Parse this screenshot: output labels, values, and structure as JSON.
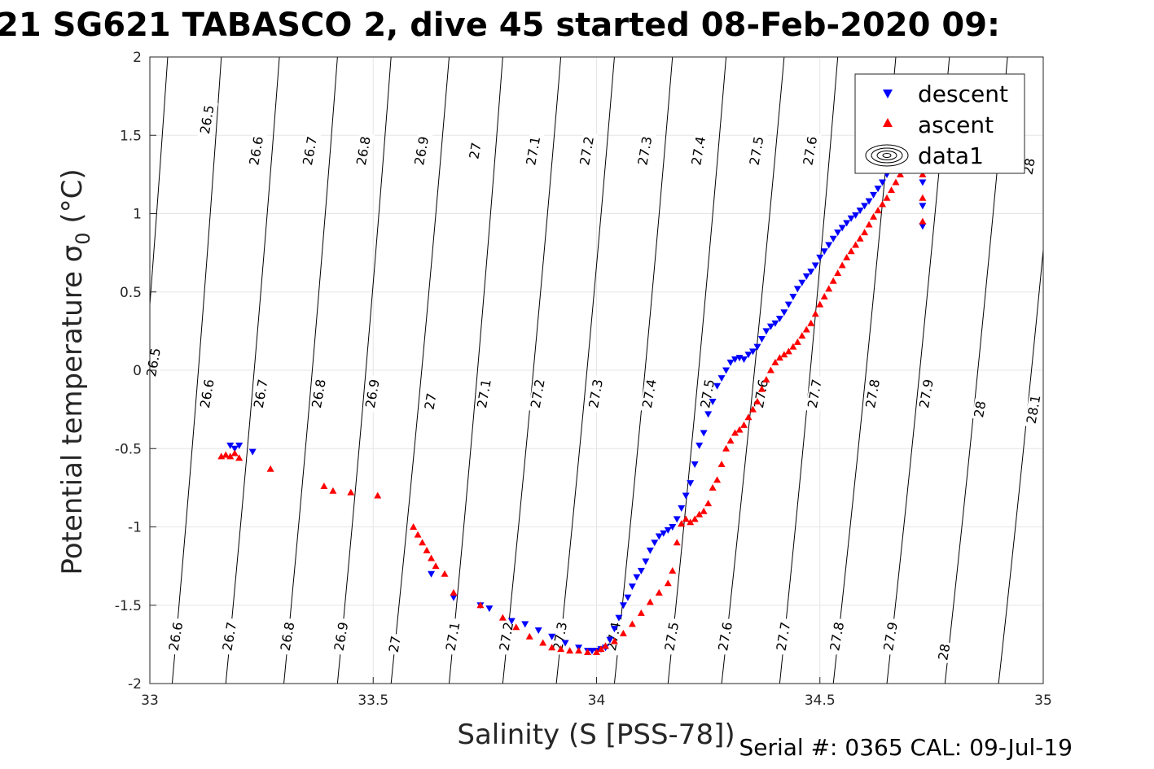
{
  "figure": {
    "title": "21 SG621 TABASCO 2, dive 45 started 08-Feb-2020 09:",
    "footer": "Serial #: 0365  CAL: 09-Jul-19"
  },
  "chart_data": {
    "type": "scatter",
    "xlabel": "Salinity (S [PSS-78])",
    "ylabel_prefix": "Potential temperature ",
    "ylabel_symbol": "σ",
    "ylabel_subscript": "0",
    "ylabel_suffix": " (°C)",
    "xlim": [
      33,
      35
    ],
    "ylim": [
      -2,
      2
    ],
    "xticks": [
      33,
      33.5,
      34,
      34.5,
      35
    ],
    "xtick_labels": [
      "33",
      "33.5",
      "34",
      "34.5",
      "35"
    ],
    "yticks": [
      -2,
      -1.5,
      -1,
      -0.5,
      0,
      0.5,
      1,
      1.5,
      2
    ],
    "ytick_labels": [
      "-2",
      "-1.5",
      "-1",
      "-0.5",
      "0",
      "0.5",
      "1",
      "1.5",
      "2"
    ],
    "grid": true,
    "legend_position": "top-right",
    "legend": [
      "descent",
      "ascent",
      "data1"
    ],
    "colors": {
      "descent": "#0000ff",
      "ascent": "#ff0000",
      "contour": "#000000",
      "grid": "#e6e6e6"
    },
    "density_contours": {
      "levels": [
        26.5,
        26.6,
        26.7,
        26.8,
        26.9,
        27,
        27.1,
        27.2,
        27.3,
        27.4,
        27.5,
        27.6,
        27.7,
        27.8,
        27.9,
        28,
        28.1
      ],
      "level_labels": [
        "26.5",
        "26.6",
        "26.7",
        "26.8",
        "26.9",
        "27",
        "27.1",
        "27.2",
        "27.3",
        "27.4",
        "27.5",
        "27.6",
        "27.7",
        "27.8",
        "27.9",
        "28",
        "28.1"
      ],
      "x_at_top": [
        33.04,
        33.16,
        33.29,
        33.42,
        33.54,
        33.67,
        33.79,
        33.92,
        34.04,
        34.17,
        34.29,
        34.42,
        34.54,
        34.67,
        34.79,
        34.92,
        35.04
      ],
      "x_at_bottom": [
        32.93,
        33.05,
        33.17,
        33.3,
        33.42,
        33.54,
        33.67,
        33.79,
        33.91,
        34.04,
        34.16,
        34.28,
        34.41,
        34.53,
        34.65,
        34.78,
        34.9
      ],
      "labels_row_top": [
        {
          "level": "26.5",
          "x": 33.13,
          "y": 1.6
        },
        {
          "level": "26.6",
          "x": 33.24,
          "y": 1.4
        },
        {
          "level": "26.7",
          "x": 33.36,
          "y": 1.4
        },
        {
          "level": "26.8",
          "x": 33.48,
          "y": 1.4
        },
        {
          "level": "26.9",
          "x": 33.61,
          "y": 1.4
        },
        {
          "level": "27",
          "x": 33.73,
          "y": 1.4
        },
        {
          "level": "27.1",
          "x": 33.86,
          "y": 1.4
        },
        {
          "level": "27.2",
          "x": 33.98,
          "y": 1.4
        },
        {
          "level": "27.3",
          "x": 34.11,
          "y": 1.4
        },
        {
          "level": "27.4",
          "x": 34.23,
          "y": 1.4
        },
        {
          "level": "27.5",
          "x": 34.36,
          "y": 1.4
        },
        {
          "level": "27.6",
          "x": 34.48,
          "y": 1.4
        },
        {
          "level": "28",
          "x": 34.97,
          "y": 1.3
        }
      ],
      "labels_row_mid": [
        {
          "level": "26.5",
          "x": 33.01,
          "y": 0.05
        },
        {
          "level": "26.6",
          "x": 33.13,
          "y": -0.15
        },
        {
          "level": "26.7",
          "x": 33.25,
          "y": -0.15
        },
        {
          "level": "26.8",
          "x": 33.38,
          "y": -0.15
        },
        {
          "level": "26.9",
          "x": 33.5,
          "y": -0.15
        },
        {
          "level": "27",
          "x": 33.63,
          "y": -0.2
        },
        {
          "level": "27.1",
          "x": 33.75,
          "y": -0.15
        },
        {
          "level": "27.2",
          "x": 33.87,
          "y": -0.15
        },
        {
          "level": "27.3",
          "x": 34.0,
          "y": -0.15
        },
        {
          "level": "27.4",
          "x": 34.12,
          "y": -0.15
        },
        {
          "level": "27.5",
          "x": 34.25,
          "y": -0.15
        },
        {
          "level": "27.6",
          "x": 34.37,
          "y": -0.15
        },
        {
          "level": "27.7",
          "x": 34.49,
          "y": -0.15
        },
        {
          "level": "27.8",
          "x": 34.62,
          "y": -0.15
        },
        {
          "level": "27.9",
          "x": 34.74,
          "y": -0.15
        },
        {
          "level": "28",
          "x": 34.86,
          "y": -0.25
        },
        {
          "level": "28.1",
          "x": 34.98,
          "y": -0.25
        }
      ],
      "labels_row_bottom": [
        {
          "level": "26.6",
          "x": 33.06,
          "y": -1.7
        },
        {
          "level": "26.7",
          "x": 33.18,
          "y": -1.7
        },
        {
          "level": "26.8",
          "x": 33.31,
          "y": -1.7
        },
        {
          "level": "26.9",
          "x": 33.43,
          "y": -1.7
        },
        {
          "level": "27",
          "x": 33.55,
          "y": -1.75
        },
        {
          "level": "27.1",
          "x": 33.68,
          "y": -1.7
        },
        {
          "level": "27.2",
          "x": 33.8,
          "y": -1.7
        },
        {
          "level": "27.3",
          "x": 33.92,
          "y": -1.7
        },
        {
          "level": "27.4",
          "x": 34.04,
          "y": -1.7
        },
        {
          "level": "27.5",
          "x": 34.17,
          "y": -1.7
        },
        {
          "level": "27.6",
          "x": 34.29,
          "y": -1.7
        },
        {
          "level": "27.7",
          "x": 34.42,
          "y": -1.7
        },
        {
          "level": "27.8",
          "x": 34.54,
          "y": -1.7
        },
        {
          "level": "27.9",
          "x": 34.66,
          "y": -1.7
        },
        {
          "level": "28",
          "x": 34.78,
          "y": -1.8
        }
      ]
    },
    "series": [
      {
        "name": "descent",
        "marker": "triangle-down",
        "x": [
          33.18,
          33.19,
          33.2,
          33.23,
          33.63,
          33.68,
          33.74,
          33.76,
          33.81,
          33.84,
          33.87,
          33.9,
          33.93,
          33.96,
          33.98,
          33.99,
          34.0,
          34.01,
          34.02,
          34.03,
          34.04,
          34.05,
          34.06,
          34.07,
          34.08,
          34.09,
          34.1,
          34.11,
          34.12,
          34.13,
          34.14,
          34.15,
          34.16,
          34.17,
          34.18,
          34.19,
          34.2,
          34.21,
          34.22,
          34.23,
          34.24,
          34.25,
          34.26,
          34.27,
          34.28,
          34.29,
          34.3,
          34.31,
          34.32,
          34.33,
          34.34,
          34.35,
          34.36,
          34.37,
          34.38,
          34.39,
          34.4,
          34.41,
          34.42,
          34.43,
          34.44,
          34.45,
          34.46,
          34.47,
          34.48,
          34.49,
          34.5,
          34.51,
          34.52,
          34.53,
          34.54,
          34.55,
          34.56,
          34.57,
          34.58,
          34.59,
          34.6,
          34.61,
          34.62,
          34.63,
          34.64,
          34.65,
          34.66,
          34.67,
          34.68,
          34.69,
          34.7,
          34.72,
          34.73,
          34.73,
          34.73
        ],
        "y": [
          -0.48,
          -0.5,
          -0.48,
          -0.52,
          -1.3,
          -1.45,
          -1.5,
          -1.52,
          -1.6,
          -1.62,
          -1.66,
          -1.7,
          -1.74,
          -1.77,
          -1.79,
          -1.79,
          -1.79,
          -1.78,
          -1.77,
          -1.72,
          -1.65,
          -1.58,
          -1.5,
          -1.45,
          -1.38,
          -1.32,
          -1.28,
          -1.22,
          -1.15,
          -1.1,
          -1.06,
          -1.04,
          -1.02,
          -1.0,
          -0.95,
          -0.88,
          -0.8,
          -0.72,
          -0.6,
          -0.48,
          -0.4,
          -0.28,
          -0.2,
          -0.1,
          -0.05,
          0.0,
          0.05,
          0.07,
          0.08,
          0.07,
          0.1,
          0.12,
          0.15,
          0.2,
          0.25,
          0.28,
          0.3,
          0.33,
          0.37,
          0.42,
          0.47,
          0.52,
          0.56,
          0.6,
          0.63,
          0.67,
          0.72,
          0.76,
          0.8,
          0.84,
          0.88,
          0.91,
          0.94,
          0.97,
          0.99,
          1.02,
          1.05,
          1.08,
          1.12,
          1.16,
          1.2,
          1.25,
          1.3,
          1.33,
          1.38,
          1.42,
          1.45,
          1.35,
          1.2,
          1.05,
          0.92
        ]
      },
      {
        "name": "ascent",
        "marker": "triangle-up",
        "x": [
          33.16,
          33.17,
          33.18,
          33.19,
          33.2,
          33.27,
          33.39,
          33.41,
          33.45,
          33.51,
          33.59,
          33.6,
          33.61,
          33.62,
          33.63,
          33.64,
          33.66,
          33.68,
          33.74,
          33.79,
          33.82,
          33.85,
          33.88,
          33.9,
          33.92,
          33.94,
          33.96,
          33.98,
          34.0,
          34.01,
          34.02,
          34.04,
          34.06,
          34.08,
          34.1,
          34.12,
          34.14,
          34.16,
          34.17,
          34.18,
          34.19,
          34.2,
          34.21,
          34.22,
          34.23,
          34.24,
          34.25,
          34.26,
          34.27,
          34.28,
          34.29,
          34.3,
          34.31,
          34.32,
          34.33,
          34.34,
          34.35,
          34.36,
          34.37,
          34.38,
          34.39,
          34.4,
          34.41,
          34.42,
          34.43,
          34.44,
          34.45,
          34.46,
          34.47,
          34.48,
          34.49,
          34.5,
          34.51,
          34.52,
          34.53,
          34.54,
          34.55,
          34.56,
          34.57,
          34.58,
          34.59,
          34.6,
          34.61,
          34.62,
          34.63,
          34.64,
          34.65,
          34.66,
          34.67,
          34.68,
          34.69,
          34.7,
          34.72,
          34.73,
          34.73,
          34.73
        ],
        "y": [
          -0.55,
          -0.54,
          -0.55,
          -0.53,
          -0.56,
          -0.63,
          -0.74,
          -0.77,
          -0.78,
          -0.8,
          -1.0,
          -1.05,
          -1.1,
          -1.15,
          -1.2,
          -1.25,
          -1.3,
          -1.42,
          -1.5,
          -1.58,
          -1.64,
          -1.7,
          -1.74,
          -1.77,
          -1.78,
          -1.79,
          -1.79,
          -1.8,
          -1.8,
          -1.78,
          -1.76,
          -1.73,
          -1.68,
          -1.62,
          -1.55,
          -1.48,
          -1.42,
          -1.36,
          -1.28,
          -1.1,
          -0.98,
          -0.95,
          -0.97,
          -0.95,
          -0.92,
          -0.9,
          -0.85,
          -0.75,
          -0.7,
          -0.6,
          -0.5,
          -0.45,
          -0.4,
          -0.38,
          -0.35,
          -0.3,
          -0.25,
          -0.2,
          -0.12,
          -0.06,
          0.0,
          0.05,
          0.08,
          0.1,
          0.12,
          0.15,
          0.18,
          0.22,
          0.26,
          0.3,
          0.36,
          0.42,
          0.47,
          0.52,
          0.57,
          0.62,
          0.67,
          0.72,
          0.76,
          0.8,
          0.84,
          0.88,
          0.93,
          0.98,
          1.02,
          1.06,
          1.1,
          1.15,
          1.2,
          1.25,
          1.3,
          1.4,
          1.38,
          1.25,
          1.1,
          0.95
        ]
      }
    ]
  }
}
